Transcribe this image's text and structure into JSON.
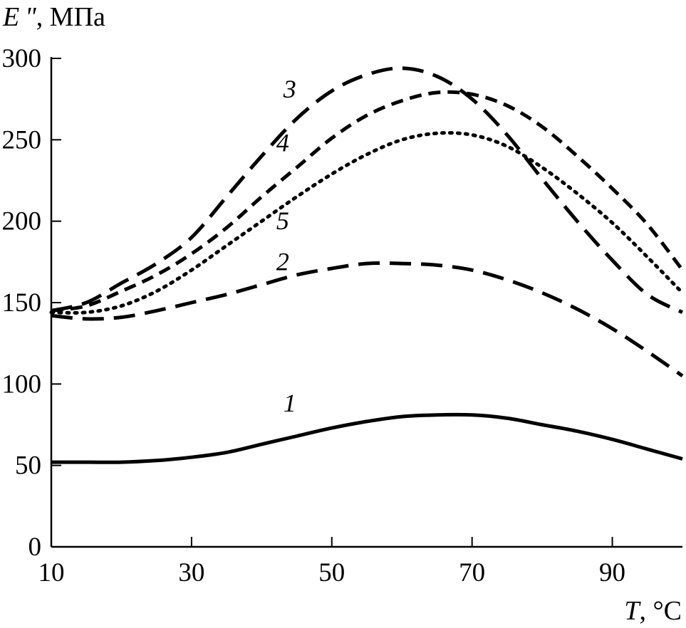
{
  "chart_data": {
    "type": "line",
    "title": "",
    "ylabel_symbol": "E \"",
    "ylabel_unit": ", МПа",
    "xlabel_symbol": "T",
    "xlabel_unit": ", °C",
    "xlim": [
      10,
      100
    ],
    "ylim": [
      0,
      300
    ],
    "x_ticks": [
      10,
      30,
      50,
      70,
      90
    ],
    "y_ticks": [
      0,
      50,
      100,
      150,
      200,
      250,
      300
    ],
    "grid": false,
    "legend": "none (curves numbered inline)",
    "series": [
      {
        "label": "1",
        "style": "solid",
        "label_pos": [
          44,
          83
        ],
        "points": [
          [
            10,
            52
          ],
          [
            15,
            52
          ],
          [
            20,
            52
          ],
          [
            25,
            53
          ],
          [
            30,
            55
          ],
          [
            35,
            58
          ],
          [
            40,
            63
          ],
          [
            45,
            68
          ],
          [
            50,
            73
          ],
          [
            55,
            77
          ],
          [
            60,
            80
          ],
          [
            65,
            81
          ],
          [
            70,
            81
          ],
          [
            75,
            79
          ],
          [
            80,
            75
          ],
          [
            85,
            71
          ],
          [
            90,
            66
          ],
          [
            95,
            60
          ],
          [
            100,
            54
          ]
        ]
      },
      {
        "label": "2",
        "style": "long-dash",
        "label_pos": [
          43,
          170
        ],
        "points": [
          [
            10,
            142
          ],
          [
            15,
            140
          ],
          [
            20,
            141
          ],
          [
            25,
            145
          ],
          [
            30,
            150
          ],
          [
            35,
            155
          ],
          [
            40,
            161
          ],
          [
            45,
            167
          ],
          [
            50,
            171
          ],
          [
            55,
            174
          ],
          [
            60,
            174
          ],
          [
            65,
            173
          ],
          [
            70,
            170
          ],
          [
            75,
            164
          ],
          [
            80,
            156
          ],
          [
            85,
            146
          ],
          [
            90,
            134
          ],
          [
            95,
            120
          ],
          [
            100,
            105
          ]
        ]
      },
      {
        "label": "3",
        "style": "long-dash",
        "label_pos": [
          44,
          276
        ],
        "points": [
          [
            10,
            145
          ],
          [
            15,
            150
          ],
          [
            20,
            162
          ],
          [
            25,
            174
          ],
          [
            30,
            190
          ],
          [
            35,
            215
          ],
          [
            40,
            240
          ],
          [
            45,
            263
          ],
          [
            50,
            280
          ],
          [
            55,
            290
          ],
          [
            60,
            294
          ],
          [
            65,
            289
          ],
          [
            70,
            275
          ],
          [
            75,
            253
          ],
          [
            80,
            226
          ],
          [
            85,
            200
          ],
          [
            90,
            176
          ],
          [
            95,
            155
          ],
          [
            100,
            144
          ]
        ]
      },
      {
        "label": "4",
        "style": "short-dash",
        "label_pos": [
          43,
          243
        ],
        "points": [
          [
            10,
            145
          ],
          [
            15,
            148
          ],
          [
            20,
            157
          ],
          [
            25,
            167
          ],
          [
            30,
            180
          ],
          [
            35,
            196
          ],
          [
            40,
            215
          ],
          [
            45,
            233
          ],
          [
            50,
            251
          ],
          [
            55,
            265
          ],
          [
            60,
            274
          ],
          [
            65,
            279
          ],
          [
            70,
            278
          ],
          [
            75,
            271
          ],
          [
            80,
            258
          ],
          [
            85,
            240
          ],
          [
            90,
            220
          ],
          [
            95,
            198
          ],
          [
            100,
            170
          ]
        ]
      },
      {
        "label": "5",
        "style": "dotted",
        "label_pos": [
          43,
          195
        ],
        "points": [
          [
            10,
            144
          ],
          [
            15,
            144
          ],
          [
            20,
            148
          ],
          [
            25,
            157
          ],
          [
            30,
            170
          ],
          [
            35,
            185
          ],
          [
            40,
            200
          ],
          [
            45,
            215
          ],
          [
            50,
            229
          ],
          [
            55,
            241
          ],
          [
            60,
            250
          ],
          [
            65,
            254
          ],
          [
            70,
            253
          ],
          [
            75,
            246
          ],
          [
            80,
            233
          ],
          [
            85,
            217
          ],
          [
            90,
            199
          ],
          [
            95,
            178
          ],
          [
            100,
            156
          ]
        ]
      }
    ]
  }
}
